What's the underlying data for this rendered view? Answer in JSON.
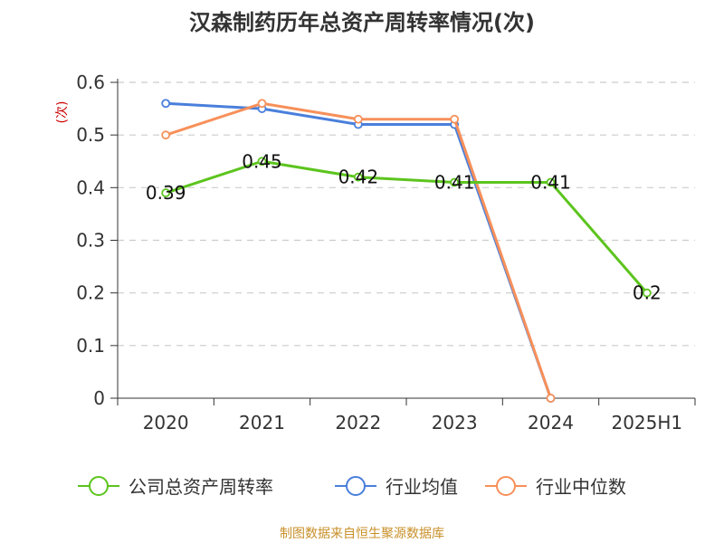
{
  "chart_data": {
    "type": "line",
    "title": "汉森制药历年总资产周转率情况(次)",
    "ylabel": "(次)",
    "categories": [
      "2020",
      "2021",
      "2022",
      "2023",
      "2024",
      "2025H1"
    ],
    "ylim": [
      0,
      0.6
    ],
    "yticks": [
      "0",
      "0.1",
      "0.2",
      "0.3",
      "0.4",
      "0.5",
      "0.6"
    ],
    "grid": true,
    "legend_position": "bottom",
    "series": [
      {
        "name": "公司总资产周转率",
        "color": "#5cc41e",
        "values": [
          0.39,
          0.45,
          0.42,
          0.41,
          0.41,
          0.2
        ],
        "labels": [
          "0.39",
          "0.45",
          "0.42",
          "0.41",
          "0.41",
          "0.2"
        ]
      },
      {
        "name": "行业均值",
        "color": "#4a7fdb",
        "values": [
          0.56,
          0.55,
          0.52,
          0.52,
          0,
          null
        ]
      },
      {
        "name": "行业中位数",
        "color": "#f7905a",
        "values": [
          0.5,
          0.56,
          0.53,
          0.53,
          0,
          null
        ]
      }
    ]
  },
  "source": "制图数据来自恒生聚源数据库"
}
